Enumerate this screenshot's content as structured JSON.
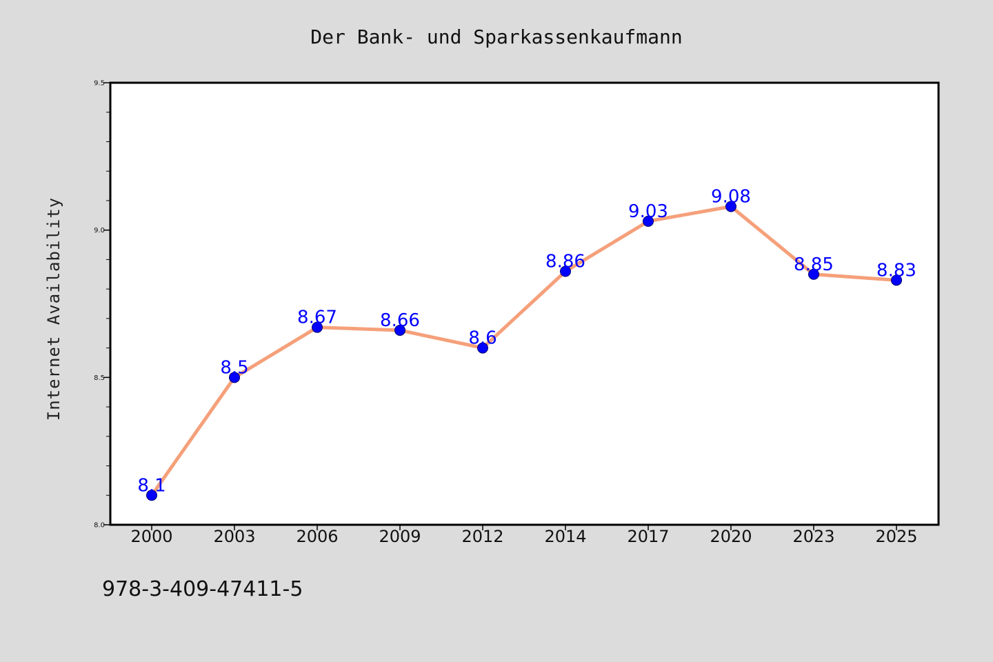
{
  "chart_data": {
    "type": "line",
    "title": "Der Bank- und Sparkassenkaufmann",
    "xlabel": "",
    "ylabel": "Internet Availability",
    "categories": [
      "2000",
      "2003",
      "2006",
      "2009",
      "2012",
      "2014",
      "2017",
      "2020",
      "2023",
      "2025"
    ],
    "values": [
      8.1,
      8.5,
      8.67,
      8.66,
      8.6,
      8.86,
      9.03,
      9.08,
      8.85,
      8.83
    ],
    "data_labels": [
      "8.1",
      "8.5",
      "8.67",
      "8.66",
      "8.6",
      "8.86",
      "9.03",
      "9.08",
      "8.85",
      "8.83"
    ],
    "ylim": [
      8.0,
      9.5
    ],
    "yticks": [
      "8.0",
      "8.5",
      "9.0",
      "9.5"
    ],
    "grid": false,
    "legend": "none",
    "colors": {
      "line": "#f5a07a",
      "marker": "#0000ff",
      "label": "#0000ff",
      "background": "#dcdcdc",
      "plot_background": "#ffffff"
    }
  },
  "footer": {
    "isbn": "978-3-409-47411-5"
  }
}
